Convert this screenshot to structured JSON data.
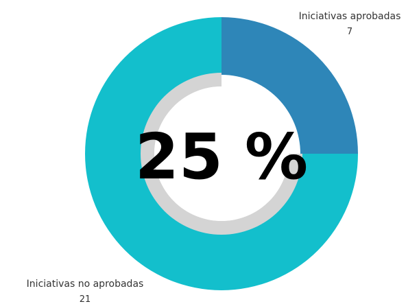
{
  "chart_data": {
    "type": "pie",
    "variant": "donut",
    "categories": [
      "Iniciativas aprobadas",
      "Iniciativas no aprobadas"
    ],
    "values": [
      7,
      21
    ],
    "value_labels": [
      "7",
      "21"
    ],
    "colors": [
      "#2e86b8",
      "#13bfcc"
    ],
    "center_label": "25 %",
    "inner_ring": {
      "value": 25,
      "max": 100,
      "color": "#d4d4d4"
    }
  }
}
